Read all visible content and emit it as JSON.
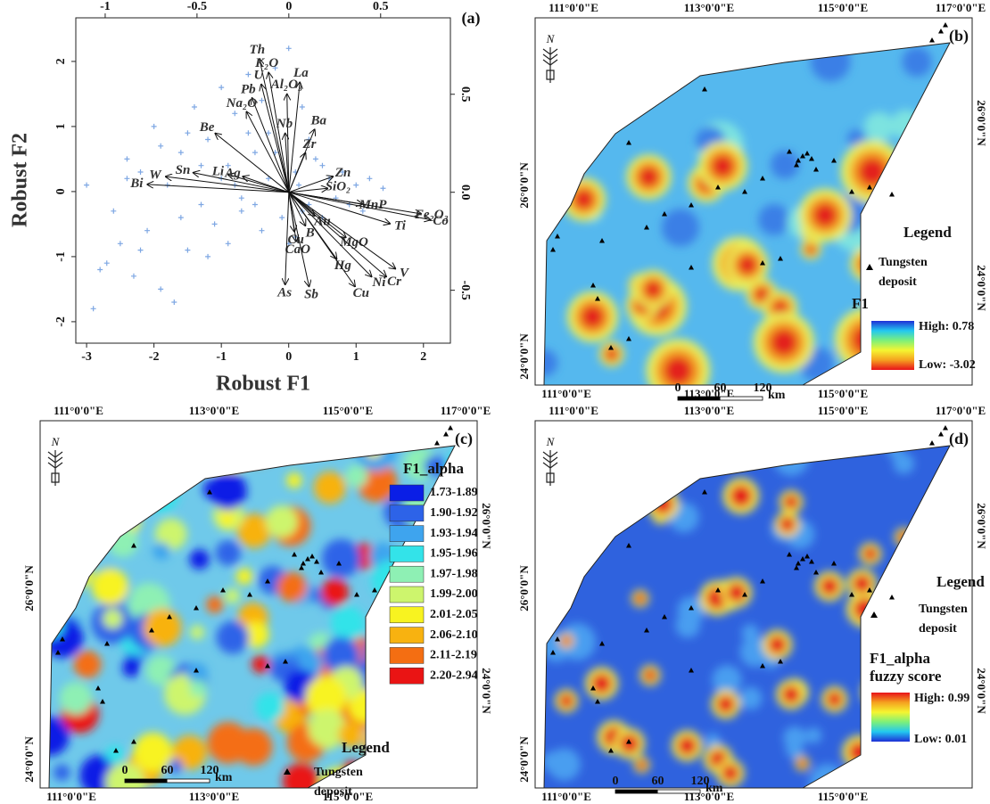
{
  "chart_data": {
    "type": "biplot",
    "panel_label": "(a)",
    "x_label": "Robust F1",
    "y_label": "Robust F2",
    "xlim": [
      -3.16,
      2.4
    ],
    "xticks": [
      -3,
      -2,
      -1,
      0,
      1,
      2
    ],
    "ylim": [
      -2.33,
      2.67
    ],
    "yticks": [
      -2,
      -1,
      0,
      1,
      2
    ],
    "x2lim": [
      -1.16,
      0.88
    ],
    "x2ticks": [
      -1,
      -0.5,
      0,
      0.5
    ],
    "y2lim": [
      -0.77,
      0.89
    ],
    "y2ticks": [
      -0.5,
      {
        "value": 0,
        "label": "0.0"
      },
      0.5
    ],
    "points": {
      "color": "#7ea7e3",
      "x": [
        -3.0,
        -2.9,
        -2.7,
        -2.6,
        -2.5,
        -2.4,
        -2.3,
        -2.2,
        -2.1,
        -2.0,
        -1.9,
        -1.8,
        -1.7,
        -1.6,
        -1.5,
        -1.4,
        -1.3,
        -1.2,
        -1.1,
        -1.0,
        -0.9,
        -0.8,
        -0.7,
        -0.6,
        -0.5,
        -0.4,
        -0.3,
        -0.2,
        -0.1,
        0.0,
        0.1,
        0.2,
        0.3,
        0.4,
        0.5,
        0.6,
        0.7,
        0.8,
        0.9,
        1.0,
        1.1,
        1.2,
        1.4,
        -2.8,
        -2.2,
        -1.9,
        -1.5,
        -1.2,
        -0.9,
        -0.6,
        -0.4,
        -0.2,
        0.1,
        0.3,
        0.5,
        -1.0,
        -0.7,
        -0.3,
        0.0,
        0.2,
        -1.6,
        -2.4,
        -1.3,
        -0.8,
        -0.5,
        0.15
      ],
      "y": [
        0.1,
        -1.8,
        -1.1,
        -0.3,
        -0.8,
        0.5,
        -1.3,
        0.3,
        -0.6,
        1.0,
        -1.5,
        0.1,
        -1.7,
        0.6,
        -0.9,
        1.3,
        -0.2,
        0.8,
        -0.5,
        1.6,
        0.4,
        1.2,
        -0.3,
        1.8,
        0.6,
        1.4,
        0.2,
        1.9,
        -0.4,
        2.2,
        0.3,
        1.3,
        -0.2,
        0.5,
        -0.4,
        0.2,
        -0.1,
        0.3,
        -0.2,
        0.1,
        -0.3,
        0.2,
        0.05,
        -1.2,
        -0.9,
        0.7,
        0.9,
        -1.0,
        -0.8,
        0.9,
        -0.6,
        0.6,
        -0.7,
        0.8,
        0.4,
        0.2,
        -0.1,
        0.9,
        -0.8,
        -0.3,
        -0.4,
        0.2,
        0.4,
        0.1,
        -0.2,
        0.1
      ]
    },
    "loadings_color": "#111111",
    "loadings": [
      {
        "name": "Th",
        "x": -0.16,
        "y": 0.68
      },
      {
        "name": "K₂O",
        "x": -0.11,
        "y": 0.61
      },
      {
        "name": "U",
        "x": -0.15,
        "y": 0.55
      },
      {
        "name": "La",
        "x": 0.06,
        "y": 0.56
      },
      {
        "name": "Pb",
        "x": -0.2,
        "y": 0.48
      },
      {
        "name": "Al₂O₃",
        "x": -0.01,
        "y": 0.5
      },
      {
        "name": "Na₂O",
        "x": -0.23,
        "y": 0.41
      },
      {
        "name": "Ba",
        "x": 0.14,
        "y": 0.32
      },
      {
        "name": "Be",
        "x": -0.4,
        "y": 0.3
      },
      {
        "name": "Nb",
        "x": -0.02,
        "y": 0.3
      },
      {
        "name": "Zr",
        "x": 0.09,
        "y": 0.2
      },
      {
        "name": "Sn",
        "x": -0.52,
        "y": 0.1
      },
      {
        "name": "W",
        "x": -0.67,
        "y": 0.08
      },
      {
        "name": "Bi",
        "x": -0.77,
        "y": 0.04
      },
      {
        "name": "Li",
        "x": -0.33,
        "y": 0.09
      },
      {
        "name": "Ag",
        "x": -0.25,
        "y": 0.08
      },
      {
        "name": "Zn",
        "x": 0.24,
        "y": 0.08
      },
      {
        "name": "SiO₂",
        "x": 0.21,
        "y": 0.02
      },
      {
        "name": "MnP",
        "x": 0.4,
        "y": -0.06
      },
      {
        "name": "Fe₂O₃",
        "x": 0.72,
        "y": -0.11
      },
      {
        "name": "Ti",
        "x": 0.55,
        "y": -0.16
      },
      {
        "name": "Co",
        "x": 0.77,
        "y": -0.14
      },
      {
        "name": "Au",
        "x": 0.14,
        "y": -0.12
      },
      {
        "name": "B",
        "x": 0.09,
        "y": -0.17
      },
      {
        "name": "Cu",
        "x": 0.03,
        "y": -0.2
      },
      {
        "name": "CaO",
        "x": 0.04,
        "y": -0.25
      },
      {
        "name": "MgO",
        "x": 0.31,
        "y": -0.23
      },
      {
        "name": "Hg",
        "x": 0.26,
        "y": -0.34
      },
      {
        "name": "V",
        "x": 0.58,
        "y": -0.39
      },
      {
        "name": "Ni",
        "x": 0.45,
        "y": -0.43
      },
      {
        "name": "Cr",
        "x": 0.53,
        "y": -0.43
      },
      {
        "name": "As",
        "x": -0.02,
        "y": -0.47
      },
      {
        "name": "Sb",
        "x": 0.11,
        "y": -0.48
      },
      {
        "name": "Cu",
        "x": 0.36,
        "y": -0.48
      }
    ]
  },
  "maps": [
    {
      "panel_label": "(b)",
      "top_ticks": [
        "111°0'0\"E",
        "113°0'0\"E",
        "115°0'0\"E",
        "117°0'0\"E"
      ],
      "bottom_ticks": [
        "111°0'0\"E",
        "113°0'0\"E",
        "115°0'0\"E"
      ],
      "left_ticks": [
        "26°0'0\"N",
        "24°0'0\"N"
      ],
      "right_ticks": [
        "26°0'0\"N",
        "24°0'0\"N"
      ],
      "legend_title": "Legend",
      "deposit_label": [
        "Tungsten",
        "deposit"
      ],
      "layer_title": [
        "F1"
      ],
      "high_label": "High: 0.78",
      "low_label": "Low: -3.02",
      "gradient_colors": [
        "#1e2fd6",
        "#22c8f0",
        "#7df07a",
        "#f5f531",
        "#f5a11f",
        "#e8121a"
      ],
      "scale_labels": [
        0,
        60,
        120
      ],
      "scale_unit": "km"
    },
    {
      "panel_label": "(c)",
      "top_ticks": [
        "111°0'0\"E",
        "113°0'0\"E",
        "115°0'0\"E",
        "117°0'0\"E"
      ],
      "bottom_ticks": [
        "111°0'0\"E",
        "113°0'0\"E",
        "115°0'0\"E"
      ],
      "left_ticks": [
        "26°0'0\"N",
        "24°0'0\"N"
      ],
      "right_ticks": [
        "26°0'0\"N",
        "24°0'0\"N"
      ],
      "legend_title": "Legend",
      "deposit_label": [
        "Tungsten",
        "deposit"
      ],
      "layer_title": [
        "F1_alpha"
      ],
      "classes": [
        {
          "label": "1.73-1.89",
          "color": "#0a1ee6"
        },
        {
          "label": "1.90-1.92",
          "color": "#2d63e8"
        },
        {
          "label": "1.93-1.94",
          "color": "#3ea4ee"
        },
        {
          "label": "1.95-1.96",
          "color": "#33e3e9"
        },
        {
          "label": "1.97-1.98",
          "color": "#8ef0b4"
        },
        {
          "label": "1.99-2.00",
          "color": "#cdf56d"
        },
        {
          "label": "2.01-2.05",
          "color": "#f8f320"
        },
        {
          "label": "2.06-2.10",
          "color": "#f8b210"
        },
        {
          "label": "2.11-2.19",
          "color": "#f46e12"
        },
        {
          "label": "2.20-2.94",
          "color": "#ea1414"
        }
      ],
      "scale_labels": [
        0,
        60,
        120
      ],
      "scale_unit": "km"
    },
    {
      "panel_label": "(d)",
      "top_ticks": [
        "111°0'0\"E",
        "113°0'0\"E",
        "115°0'0\"E",
        "117°0'0\"E"
      ],
      "bottom_ticks": [
        "111°0'0\"E",
        "113°0'0\"E",
        "115°0'0\"E"
      ],
      "left_ticks": [
        "26°0'0\"N",
        "24°0'0\"N"
      ],
      "right_ticks": [
        "26°0'0\"N",
        "24°0'0\"N"
      ],
      "legend_title": "Legend",
      "deposit_label": [
        "Tungsten",
        "deposit"
      ],
      "layer_title": [
        "F1_alpha",
        "fuzzy score"
      ],
      "high_label": "High: 0.99",
      "low_label": "Low: 0.01",
      "gradient_colors": [
        "#e8121a",
        "#f5a11f",
        "#f5f531",
        "#7df07a",
        "#22c8f0",
        "#1e2fd6"
      ],
      "scale_labels": [
        0,
        60,
        120
      ],
      "scale_unit": "km"
    }
  ]
}
